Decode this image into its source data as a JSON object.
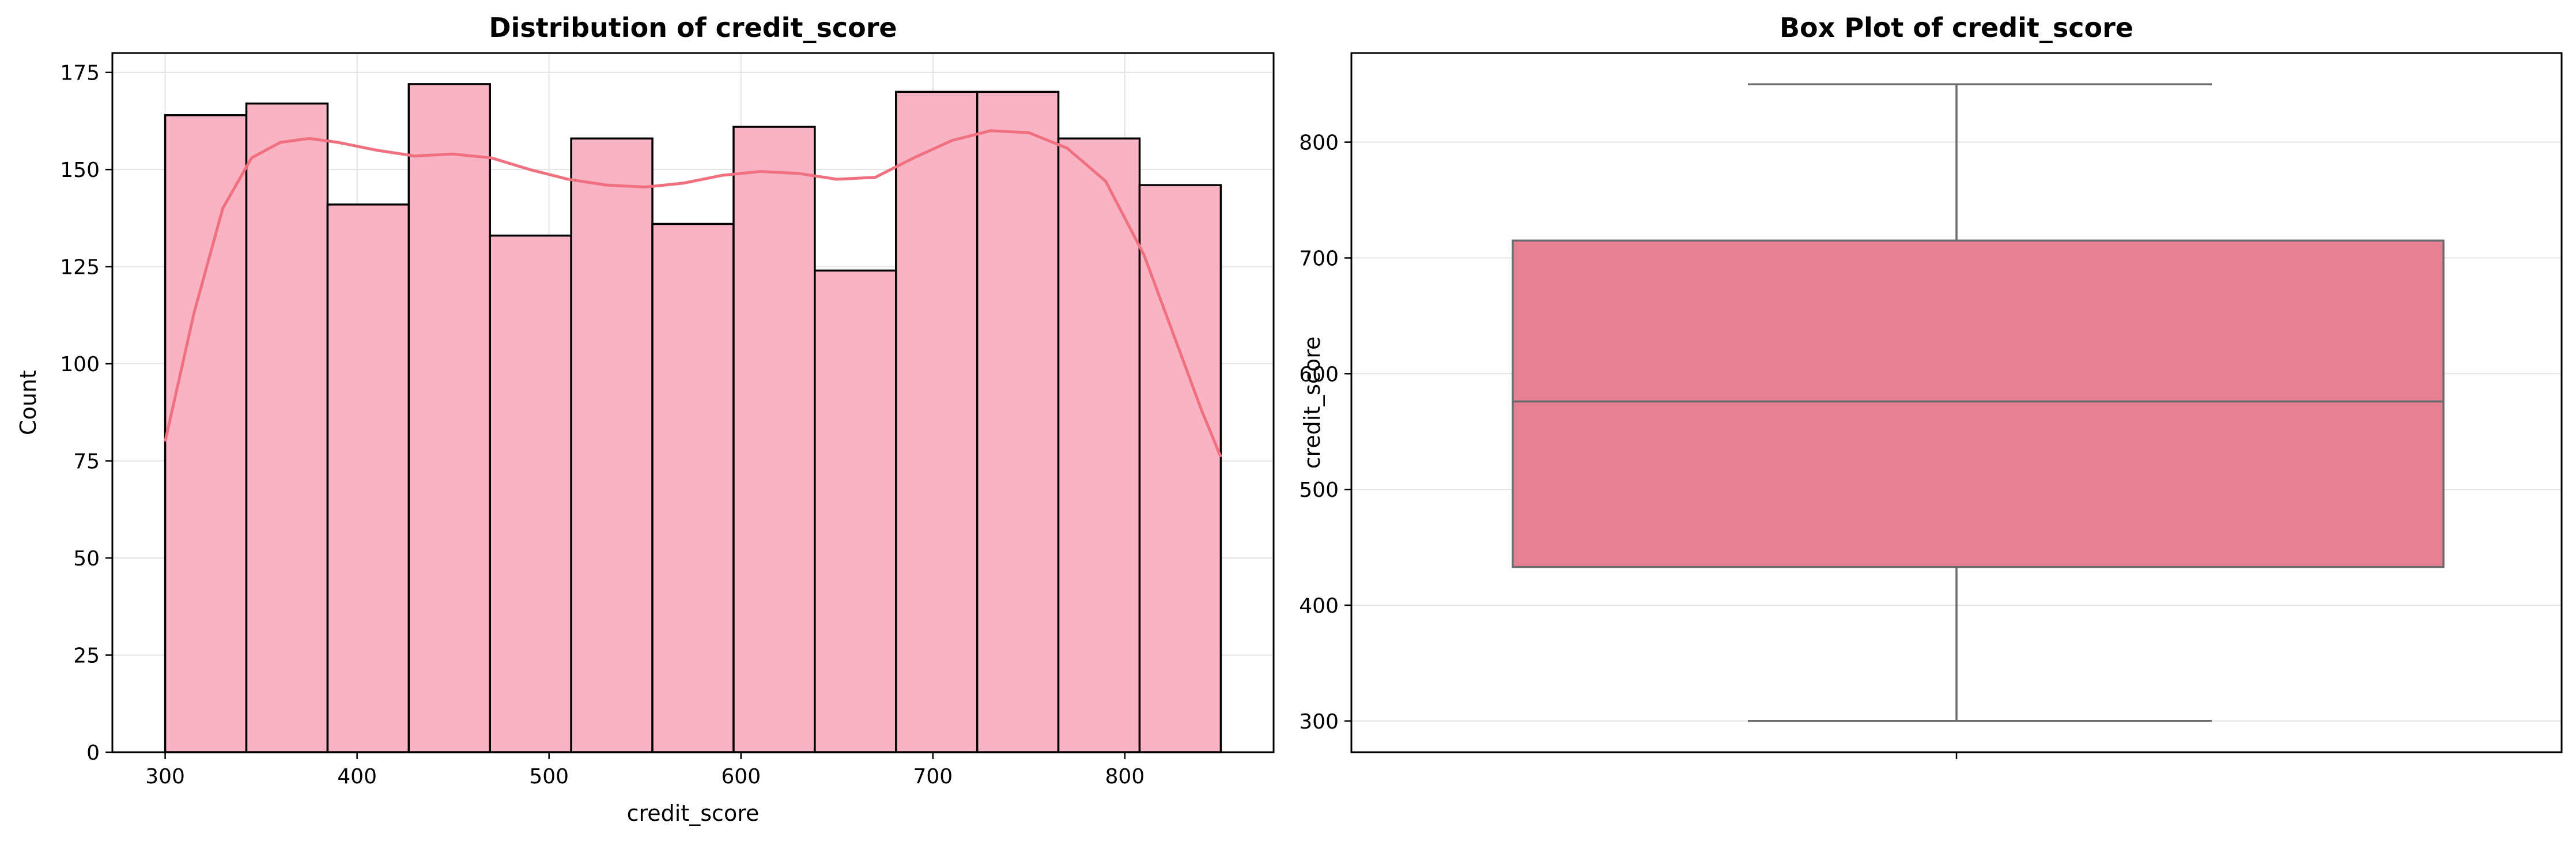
{
  "chart_data": [
    {
      "type": "bar",
      "title": "Distribution of credit_score",
      "xlabel": "credit_score",
      "ylabel": "Count",
      "xlim": [
        272.5,
        877.5
      ],
      "ylim": [
        0,
        180
      ],
      "xticks": [
        300,
        400,
        500,
        600,
        700,
        800
      ],
      "yticks": [
        0,
        25,
        50,
        75,
        100,
        125,
        150,
        175
      ],
      "grid": true,
      "bin_edges": [
        300,
        342.31,
        384.62,
        426.92,
        469.23,
        511.54,
        553.85,
        596.15,
        638.46,
        680.77,
        723.08,
        765.38,
        807.69,
        850
      ],
      "values": [
        164,
        167,
        141,
        172,
        133,
        158,
        136,
        161,
        124,
        170,
        170,
        158,
        146
      ],
      "bar_color": "#f8b4c4",
      "kde": {
        "name": "",
        "color": "#f0707f",
        "x": [
          300,
          315,
          330,
          345,
          360,
          375,
          390,
          410,
          430,
          450,
          470,
          490,
          510,
          530,
          550,
          570,
          590,
          610,
          630,
          650,
          670,
          690,
          710,
          730,
          750,
          770,
          790,
          810,
          825,
          840,
          850
        ],
        "y": [
          80,
          113,
          140,
          153,
          157,
          158,
          157,
          155,
          153.5,
          154,
          153,
          150,
          147.5,
          146,
          145.5,
          146.5,
          148.5,
          149.5,
          149,
          147.5,
          148,
          153,
          157.5,
          160,
          159.5,
          155.5,
          147,
          128,
          108,
          88,
          76
        ]
      }
    },
    {
      "type": "box",
      "title": "Box Plot of credit_score",
      "xlabel": "",
      "ylabel": "credit_score",
      "ylim": [
        273,
        877
      ],
      "yticks": [
        300,
        400,
        500,
        600,
        700,
        800
      ],
      "grid": true,
      "box_color": "#e68093",
      "stats": {
        "min": 300,
        "q1": 433,
        "median": 576,
        "q3": 715,
        "max": 850
      }
    }
  ]
}
